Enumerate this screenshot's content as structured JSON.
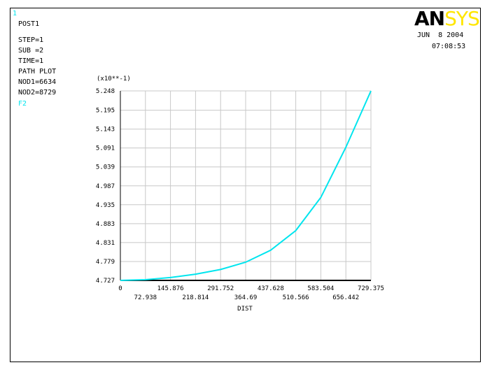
{
  "header": {
    "window_number": "1",
    "info_lines": [
      "POST1",
      "STEP=1",
      "SUB =2",
      "TIME=1",
      "PATH PLOT",
      "NOD1=6634",
      "NOD2=8729"
    ],
    "item_label": "F2",
    "date": "JUN  8 2004",
    "time": "07:08:53"
  },
  "logo": {
    "dark_part": "AN",
    "light_part": "SYS"
  },
  "colors": {
    "curve": "#00e5ee",
    "grid": "#c8c8c8",
    "accent_text": "#00e5ee",
    "logo_yellow": "#ffe600"
  },
  "chart_data": {
    "type": "line",
    "title": "",
    "xlabel": "DIST",
    "ylabel": "",
    "y_multiplier_label": "(x10**-1)",
    "xlim": [
      0,
      729.375
    ],
    "ylim": [
      4.727,
      5.248
    ],
    "x_ticks_upper": [
      "0",
      "145.876",
      "291.752",
      "437.628",
      "583.504",
      "729.375"
    ],
    "x_ticks_lower": [
      "72.938",
      "218.814",
      "364.69",
      "510.566",
      "656.442"
    ],
    "y_ticks": [
      "4.727",
      "4.779",
      "4.831",
      "4.883",
      "4.935",
      "4.987",
      "5.039",
      "5.091",
      "5.143",
      "5.195",
      "5.248"
    ],
    "grid": true,
    "series": [
      {
        "x": [
          0,
          72.938,
          145.876,
          218.814,
          291.752,
          364.69,
          437.628,
          510.566,
          583.504,
          656.442,
          729.375
        ],
        "y": [
          4.727,
          4.729,
          4.735,
          4.744,
          4.757,
          4.777,
          4.81,
          4.864,
          4.955,
          5.093,
          5.248
        ]
      }
    ]
  }
}
